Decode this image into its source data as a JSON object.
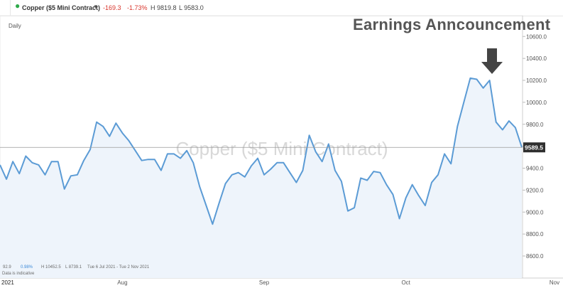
{
  "header": {
    "dot_color": "#2eaa4a",
    "instrument": "Copper ($5 Mini Contract)",
    "change": "-169.3",
    "change_pct": "-1.73%",
    "high": "H 9819.8",
    "low": "L 9583.0"
  },
  "period_label": "Daily",
  "annotation": "Earnings Anncouncement",
  "watermark": "Copper ($5 Mini Contract)",
  "price_tag": "9589.5",
  "stats": {
    "val1": "92.9",
    "val2": "0.98%",
    "high": "H 10452.5",
    "low": "L 8739.1",
    "range": "Tue 6 Jul 2021 - Tue 2 Nov 2021",
    "note": "Data is indicative"
  },
  "colors": {
    "line": "#5b9bd5",
    "fill": "#eef4fb",
    "negative": "#d9352c",
    "arrow": "#444444"
  },
  "chart_data": {
    "type": "area",
    "ylim": [
      8400,
      10700
    ],
    "yticks": [
      "10600.0",
      "10400.0",
      "10200.0",
      "10000.0",
      "9800.0",
      "9600.0",
      "9400.0",
      "9200.0",
      "9000.0",
      "8800.0",
      "8600.0"
    ],
    "ytick_values": [
      10600,
      10400,
      10200,
      10000,
      9800,
      9600,
      9400,
      9200,
      9000,
      8800,
      8600
    ],
    "xlabels": [
      {
        "label": "2021",
        "i": 0
      },
      {
        "label": "Aug",
        "i": 19
      },
      {
        "label": "Sep",
        "i": 41
      },
      {
        "label": "Oct",
        "i": 63
      },
      {
        "label": "Nov",
        "i": 86
      }
    ],
    "last_price": 9589.5,
    "values": [
      9430,
      9300,
      9460,
      9350,
      9510,
      9450,
      9430,
      9340,
      9460,
      9460,
      9210,
      9330,
      9340,
      9470,
      9570,
      9820,
      9780,
      9690,
      9810,
      9720,
      9650,
      9560,
      9470,
      9480,
      9480,
      9380,
      9530,
      9530,
      9490,
      9560,
      9450,
      9230,
      9060,
      8890,
      9080,
      9260,
      9340,
      9360,
      9320,
      9420,
      9490,
      9340,
      9390,
      9450,
      9450,
      9360,
      9270,
      9380,
      9700,
      9550,
      9460,
      9620,
      9380,
      9280,
      9010,
      9040,
      9310,
      9290,
      9370,
      9360,
      9250,
      9160,
      8940,
      9130,
      9250,
      9150,
      9060,
      9270,
      9340,
      9530,
      9440,
      9780,
      10000,
      10220,
      10210,
      10130,
      10200,
      9820,
      9750,
      9830,
      9770,
      9589.5
    ]
  }
}
